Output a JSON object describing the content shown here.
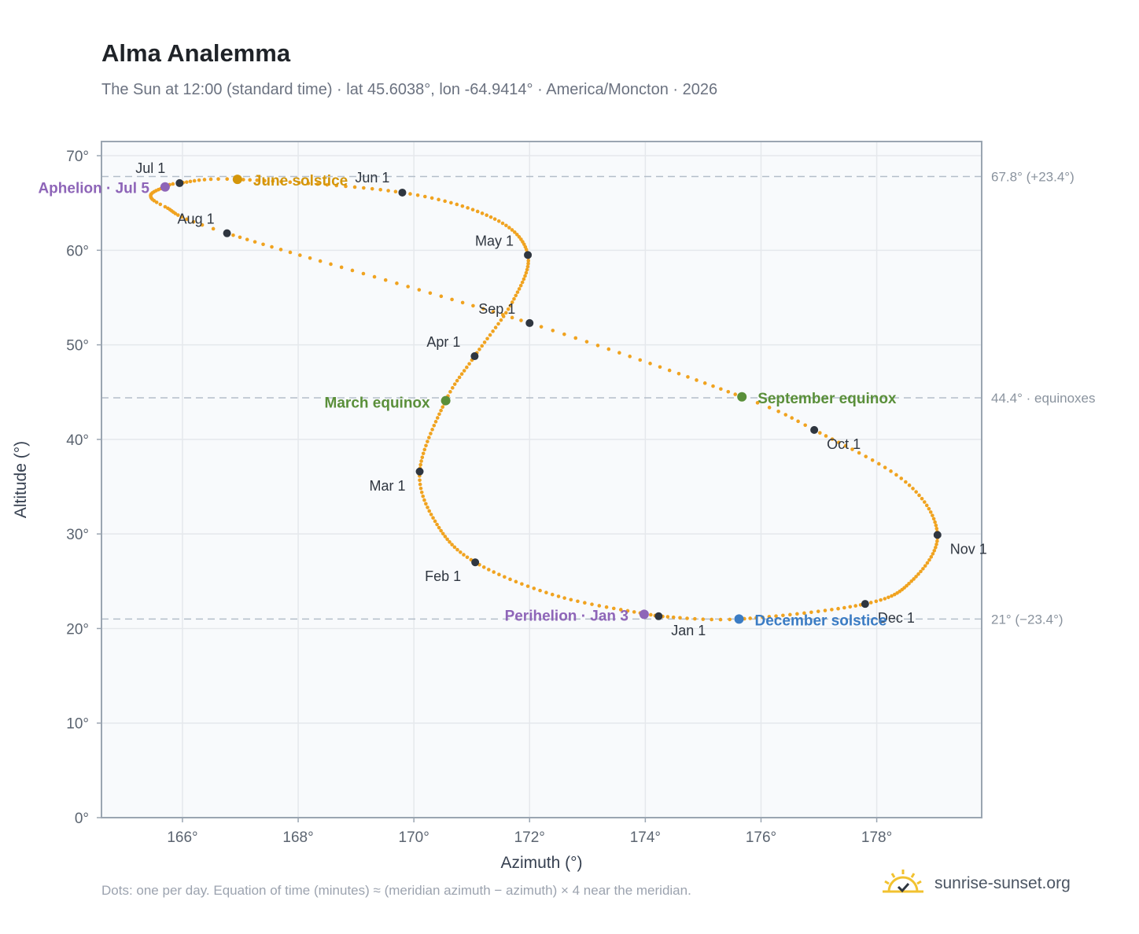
{
  "header": {
    "title": "Alma Analemma",
    "subtitle": "The Sun at 12:00 (standard time) · lat 45.6038°, lon -64.9414° · America/Moncton · 2026"
  },
  "footer": {
    "note": "Dots: one per day. Equation of time (minutes) ≈ (meridian azimuth − azimuth) × 4 near the meridian.",
    "brand": "sunrise-sunset.org",
    "brand_icon": "sun-logo-icon"
  },
  "colors": {
    "curve": "#f0a320",
    "marker": "#2f3640",
    "apsis": "#8e65b8",
    "june_solstice": "#d4960a",
    "december_solstice": "#3b7cc4",
    "equinox": "#5a8f3a",
    "grid": "#e5e8ec",
    "frame": "#9aa5b1",
    "plot_bg": "#f8fafc"
  },
  "chart_data": {
    "type": "scatter",
    "xlabel": "Azimuth (°)",
    "ylabel": "Altitude (°)",
    "xlim": [
      164.6,
      199.2
    ],
    "ylim": [
      0,
      71.5
    ],
    "x_ticks": [
      166,
      168,
      170,
      172,
      174,
      176,
      178
    ],
    "x_tick_labels": [
      "166°",
      "168°",
      "170°",
      "172°",
      "174°",
      "176°",
      "178°"
    ],
    "y_ticks": [
      0,
      10,
      20,
      30,
      40,
      50,
      60,
      70
    ],
    "y_tick_labels": [
      "0°",
      "10°",
      "20°",
      "30°",
      "40°",
      "50°",
      "60°",
      "70°"
    ],
    "grid": true,
    "reference_lines": [
      {
        "y": 67.8,
        "label": "67.8° (+23.4°)"
      },
      {
        "y": 44.4,
        "label": "44.4° · equinoxes"
      },
      {
        "y": 21.0,
        "label": "21° (−23.4°)"
      }
    ],
    "month_markers": [
      {
        "label": "Jan 1",
        "azimuth": 174.23,
        "altitude": 21.3
      },
      {
        "label": "Feb 1",
        "azimuth": 171.06,
        "altitude": 27.0
      },
      {
        "label": "Mar 1",
        "azimuth": 170.1,
        "altitude": 36.6
      },
      {
        "label": "Apr 1",
        "azimuth": 171.05,
        "altitude": 48.8
      },
      {
        "label": "May 1",
        "azimuth": 171.97,
        "altitude": 59.5
      },
      {
        "label": "Jun 1",
        "azimuth": 169.8,
        "altitude": 66.1
      },
      {
        "label": "Jul 1",
        "azimuth": 165.95,
        "altitude": 67.1
      },
      {
        "label": "Aug 1",
        "azimuth": 166.77,
        "altitude": 61.8
      },
      {
        "label": "Sep 1",
        "azimuth": 172.0,
        "altitude": 52.3
      },
      {
        "label": "Oct 1",
        "azimuth": 176.92,
        "altitude": 41.0
      },
      {
        "label": "Nov 1",
        "azimuth": 179.05,
        "altitude": 29.9
      },
      {
        "label": "Dec 1",
        "azimuth": 177.8,
        "altitude": 22.6
      }
    ],
    "events": [
      {
        "label": "Aphelion · Jul 5",
        "azimuth": 165.7,
        "altitude": 66.7,
        "kind": "apsis"
      },
      {
        "label": "June solstice",
        "azimuth": 166.95,
        "altitude": 67.5,
        "kind": "june_solstice"
      },
      {
        "label": "March equinox",
        "azimuth": 170.55,
        "altitude": 44.1,
        "kind": "equinox"
      },
      {
        "label": "September equinox",
        "azimuth": 175.67,
        "altitude": 44.5,
        "kind": "equinox"
      },
      {
        "label": "Perihelion · Jan 3",
        "azimuth": 173.98,
        "altitude": 21.5,
        "kind": "apsis"
      },
      {
        "label": "December solstice",
        "azimuth": 175.62,
        "altitude": 21.0,
        "kind": "december_solstice"
      }
    ],
    "daily_path_keypoints": [
      {
        "day": 0,
        "azimuth": 174.23,
        "altitude": 21.3
      },
      {
        "day": 16,
        "azimuth": 172.5,
        "altitude": 23.4
      },
      {
        "day": 31,
        "azimuth": 171.06,
        "altitude": 27.0
      },
      {
        "day": 45,
        "azimuth": 170.4,
        "altitude": 31.0
      },
      {
        "day": 59,
        "azimuth": 170.1,
        "altitude": 36.6
      },
      {
        "day": 78,
        "azimuth": 170.55,
        "altitude": 44.1
      },
      {
        "day": 90,
        "azimuth": 171.05,
        "altitude": 48.8
      },
      {
        "day": 105,
        "azimuth": 171.7,
        "altitude": 54.5
      },
      {
        "day": 120,
        "azimuth": 171.97,
        "altitude": 59.5
      },
      {
        "day": 135,
        "azimuth": 171.4,
        "altitude": 63.3
      },
      {
        "day": 151,
        "azimuth": 169.8,
        "altitude": 66.1
      },
      {
        "day": 171,
        "azimuth": 166.95,
        "altitude": 67.5
      },
      {
        "day": 181,
        "azimuth": 165.95,
        "altitude": 67.1
      },
      {
        "day": 185,
        "azimuth": 165.7,
        "altitude": 66.7
      },
      {
        "day": 193,
        "azimuth": 165.45,
        "altitude": 65.8
      },
      {
        "day": 200,
        "azimuth": 165.7,
        "altitude": 64.6
      },
      {
        "day": 212,
        "azimuth": 166.77,
        "altitude": 61.8
      },
      {
        "day": 243,
        "azimuth": 172.0,
        "altitude": 52.3
      },
      {
        "day": 265,
        "azimuth": 175.67,
        "altitude": 44.5
      },
      {
        "day": 273,
        "azimuth": 176.92,
        "altitude": 41.0
      },
      {
        "day": 288,
        "azimuth": 178.5,
        "altitude": 35.5
      },
      {
        "day": 304,
        "azimuth": 179.05,
        "altitude": 29.9
      },
      {
        "day": 320,
        "azimuth": 178.6,
        "altitude": 25.0
      },
      {
        "day": 334,
        "azimuth": 177.8,
        "altitude": 22.6
      },
      {
        "day": 354,
        "azimuth": 175.62,
        "altitude": 21.0
      },
      {
        "day": 365,
        "azimuth": 174.23,
        "altitude": 21.3
      }
    ]
  }
}
